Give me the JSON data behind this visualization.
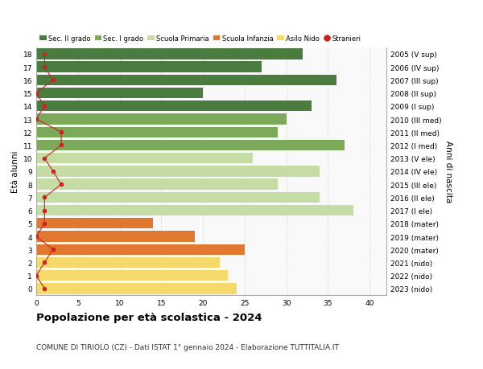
{
  "ages": [
    18,
    17,
    16,
    15,
    14,
    13,
    12,
    11,
    10,
    9,
    8,
    7,
    6,
    5,
    4,
    3,
    2,
    1,
    0
  ],
  "right_labels": [
    "2005 (V sup)",
    "2006 (IV sup)",
    "2007 (III sup)",
    "2008 (II sup)",
    "2009 (I sup)",
    "2010 (III med)",
    "2011 (II med)",
    "2012 (I med)",
    "2013 (V ele)",
    "2014 (IV ele)",
    "2015 (III ele)",
    "2016 (II ele)",
    "2017 (I ele)",
    "2018 (mater)",
    "2019 (mater)",
    "2020 (mater)",
    "2021 (nido)",
    "2022 (nido)",
    "2023 (nido)"
  ],
  "bar_values": [
    32,
    27,
    36,
    20,
    33,
    30,
    29,
    37,
    26,
    34,
    29,
    34,
    38,
    14,
    19,
    25,
    22,
    23,
    24
  ],
  "stranieri_values": [
    1,
    1,
    2,
    0,
    1,
    0,
    3,
    3,
    1,
    2,
    3,
    1,
    1,
    1,
    0,
    2,
    1,
    0,
    1
  ],
  "bar_colors": [
    "#4a7c3f",
    "#4a7c3f",
    "#4a7c3f",
    "#4a7c3f",
    "#4a7c3f",
    "#7daa5a",
    "#7daa5a",
    "#7daa5a",
    "#c5dca5",
    "#c5dca5",
    "#c5dca5",
    "#c5dca5",
    "#c5dca5",
    "#e07830",
    "#e07830",
    "#e07830",
    "#f5d96b",
    "#f5d96b",
    "#f5d96b"
  ],
  "legend_labels": [
    "Sec. II grado",
    "Sec. I grado",
    "Scuola Primaria",
    "Scuola Infanzia",
    "Asilo Nido",
    "Stranieri"
  ],
  "legend_colors": [
    "#4a7c3f",
    "#7daa5a",
    "#c5dca5",
    "#e07830",
    "#f5d96b",
    "#cc2222"
  ],
  "title": "Popolazione per età scolastica - 2024",
  "subtitle": "COMUNE DI TIRIOLO (CZ) - Dati ISTAT 1° gennaio 2024 - Elaborazione TUTTITALIA.IT",
  "ylabel": "Età alunni",
  "right_ylabel": "Anni di nascita",
  "xlabel_ticks": [
    0,
    5,
    10,
    15,
    20,
    25,
    30,
    35,
    40
  ],
  "xlim": [
    0,
    42
  ],
  "bg_color": "#ffffff",
  "plot_bg_color": "#f9f9f9",
  "grid_color": "#dddddd",
  "bar_height": 0.82
}
